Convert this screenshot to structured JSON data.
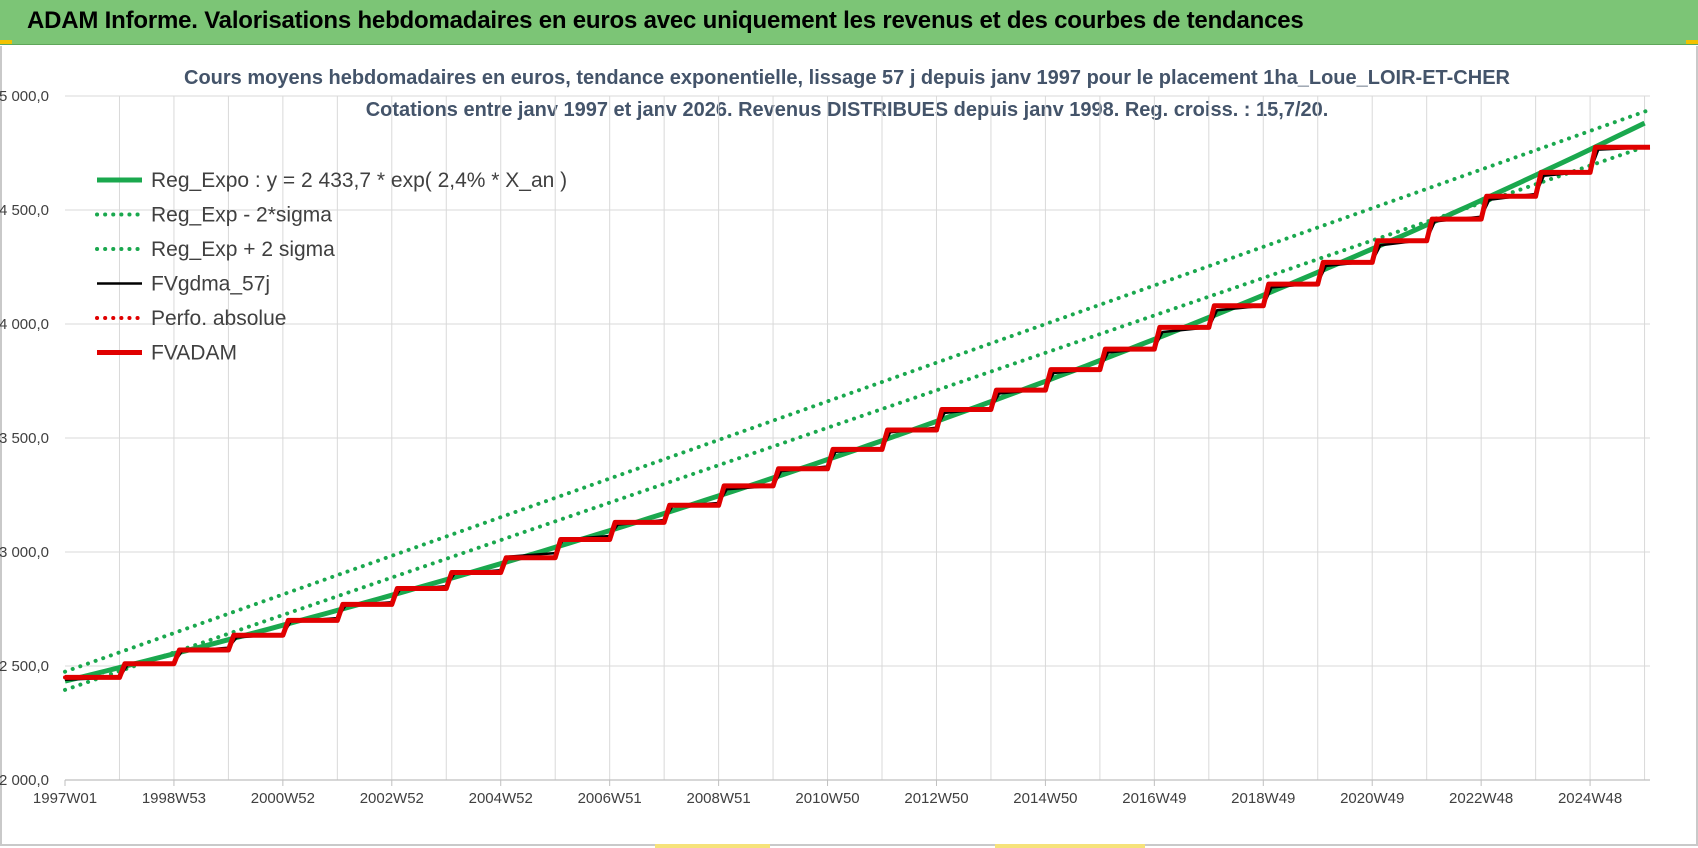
{
  "header": {
    "title": "ADAM Informe. Valorisations hebdomadaires en euros avec uniquement les revenus et des courbes de tendances"
  },
  "colors": {
    "banner": "#7cc576",
    "reg_expo": "#1aa84e",
    "reg_band": "#1aa84e",
    "fvgdma": "#000000",
    "perfo": "#e00000",
    "fvadam": "#e00000"
  },
  "chart_data": {
    "type": "line",
    "title": "Cours moyens hebdomadaires en euros, tendance exponentielle, lissage 57 j depuis janv 1997 pour le placement 1ha_Loue_LOIR-ET-CHER",
    "subtitle": "Cotations entre janv 1997 et janv 2026. Revenus DISTRIBUES depuis janv 1998. Reg. croiss. : 15,7/20.",
    "xlabel": "",
    "ylabel": "",
    "x_range": [
      1997.0,
      2026.1
    ],
    "ylim": [
      2000,
      5000
    ],
    "grid": true,
    "legend_position": "top-left",
    "x_tick_labels": [
      "1997W01",
      "1998W53",
      "2000W52",
      "2002W52",
      "2004W52",
      "2006W51",
      "2008W51",
      "2010W50",
      "2012W50",
      "2014W50",
      "2016W49",
      "2018W49",
      "2020W49",
      "2022W48",
      "2024W48"
    ],
    "x_tick_years": [
      1997,
      1999,
      2001,
      2003,
      2005,
      2007,
      2009,
      2011,
      2013,
      2015,
      2017,
      2019,
      2021,
      2023,
      2025
    ],
    "y_ticks": [
      2000,
      2500,
      3000,
      3500,
      4000,
      4500,
      5000
    ],
    "y_tick_labels": [
      "2 000,0",
      "2 500,0",
      "3 000,0",
      "3 500,0",
      "4 000,0",
      "4 500,0",
      "5 000,0"
    ],
    "series": [
      {
        "name": "Reg_Expo : y = 2 433,7 * exp( 2,4% *  X_an )",
        "style": "solid-thick",
        "color": "#1aa84e",
        "x": [
          1997.0,
          2026.1
        ],
        "model": {
          "a": 2433.7,
          "rate": 0.024
        }
      },
      {
        "name": "Reg_Exp - 2*sigma",
        "style": "dotted",
        "color": "#1aa84e",
        "x": [
          1997.0,
          2026.1
        ],
        "y": [
          2395,
          4785
        ]
      },
      {
        "name": "Reg_Exp + 2 sigma",
        "style": "dotted",
        "color": "#1aa84e",
        "x": [
          1997.0,
          2026.1
        ],
        "y": [
          2475,
          4940
        ]
      },
      {
        "name": "FVgdma_57j",
        "style": "solid",
        "color": "#000000",
        "x": [
          1997.0,
          1998.0,
          1998.15,
          1999.0,
          1999.15,
          2000.0,
          2000.15,
          2001.0,
          2001.15,
          2002.0,
          2002.15,
          2003.0,
          2003.15,
          2004.0,
          2004.15,
          2005.0,
          2005.15,
          2006.0,
          2006.15,
          2007.0,
          2007.15,
          2008.0,
          2008.15,
          2009.0,
          2009.15,
          2010.0,
          2010.15,
          2011.0,
          2011.15,
          2012.0,
          2012.15,
          2013.0,
          2013.15,
          2014.0,
          2014.15,
          2015.0,
          2015.15,
          2016.0,
          2016.15,
          2017.0,
          2017.15,
          2018.0,
          2018.15,
          2019.0,
          2019.15,
          2020.0,
          2020.15,
          2021.0,
          2021.15,
          2022.0,
          2022.15,
          2023.0,
          2023.15,
          2024.0,
          2024.15,
          2025.0,
          2025.15,
          2026.1
        ],
        "y": [
          2440,
          2450,
          2505,
          2515,
          2565,
          2580,
          2625,
          2640,
          2695,
          2710,
          2765,
          2780,
          2835,
          2850,
          2905,
          2920,
          2980,
          2995,
          3055,
          3070,
          3120,
          3140,
          3200,
          3215,
          3275,
          3290,
          3355,
          3375,
          3440,
          3455,
          3525,
          3545,
          3610,
          3630,
          3695,
          3715,
          3785,
          3805,
          3875,
          3895,
          3965,
          3985,
          4060,
          4080,
          4160,
          4180,
          4255,
          4275,
          4345,
          4370,
          4450,
          4470,
          4545,
          4570,
          4650,
          4670,
          4765,
          4775
        ]
      },
      {
        "name": "Perfo. absolue",
        "style": "dotted",
        "color": "#e00000",
        "x": [
          1997.0,
          1998.0,
          1998.1,
          1999.0,
          1999.1,
          2000.0,
          2000.1,
          2001.0,
          2001.1,
          2002.0,
          2002.1,
          2003.0,
          2003.1,
          2004.0,
          2004.1,
          2005.0,
          2005.1,
          2006.0,
          2006.1,
          2007.0,
          2007.1,
          2008.0,
          2008.1,
          2009.0,
          2009.1,
          2010.0,
          2010.1,
          2011.0,
          2011.1,
          2012.0,
          2012.1,
          2013.0,
          2013.1,
          2014.0,
          2014.1,
          2015.0,
          2015.1,
          2016.0,
          2016.1,
          2017.0,
          2017.1,
          2018.0,
          2018.1,
          2019.0,
          2019.1,
          2020.0,
          2020.1,
          2021.0,
          2021.1,
          2022.0,
          2022.1,
          2023.0,
          2023.1,
          2024.0,
          2024.1,
          2025.0,
          2025.1,
          2026.1
        ],
        "y": [
          2450,
          2450,
          2510,
          2510,
          2570,
          2570,
          2635,
          2635,
          2700,
          2700,
          2770,
          2770,
          2840,
          2840,
          2910,
          2910,
          2975,
          2975,
          3055,
          3055,
          3130,
          3130,
          3205,
          3205,
          3290,
          3290,
          3365,
          3365,
          3450,
          3450,
          3535,
          3535,
          3625,
          3625,
          3710,
          3710,
          3800,
          3800,
          3890,
          3890,
          3985,
          3985,
          4080,
          4080,
          4175,
          4175,
          4270,
          4270,
          4365,
          4365,
          4460,
          4460,
          4560,
          4560,
          4665,
          4665,
          4775,
          4775
        ]
      },
      {
        "name": "FVADAM",
        "style": "solid-thick",
        "color": "#e00000",
        "x": [
          1997.0,
          1998.0,
          1998.1,
          1999.0,
          1999.1,
          2000.0,
          2000.1,
          2001.0,
          2001.1,
          2002.0,
          2002.1,
          2003.0,
          2003.1,
          2004.0,
          2004.1,
          2005.0,
          2005.1,
          2006.0,
          2006.1,
          2007.0,
          2007.1,
          2008.0,
          2008.1,
          2009.0,
          2009.1,
          2010.0,
          2010.1,
          2011.0,
          2011.1,
          2012.0,
          2012.1,
          2013.0,
          2013.1,
          2014.0,
          2014.1,
          2015.0,
          2015.1,
          2016.0,
          2016.1,
          2017.0,
          2017.1,
          2018.0,
          2018.1,
          2019.0,
          2019.1,
          2020.0,
          2020.1,
          2021.0,
          2021.1,
          2022.0,
          2022.1,
          2023.0,
          2023.1,
          2024.0,
          2024.1,
          2025.0,
          2025.1,
          2026.1
        ],
        "y": [
          2450,
          2450,
          2510,
          2510,
          2570,
          2570,
          2635,
          2635,
          2700,
          2700,
          2770,
          2770,
          2840,
          2840,
          2910,
          2910,
          2975,
          2975,
          3055,
          3055,
          3130,
          3130,
          3205,
          3205,
          3290,
          3290,
          3365,
          3365,
          3450,
          3450,
          3535,
          3535,
          3625,
          3625,
          3710,
          3710,
          3800,
          3800,
          3890,
          3890,
          3985,
          3985,
          4080,
          4080,
          4175,
          4175,
          4270,
          4270,
          4365,
          4365,
          4460,
          4460,
          4560,
          4560,
          4665,
          4665,
          4775,
          4775
        ]
      }
    ]
  }
}
